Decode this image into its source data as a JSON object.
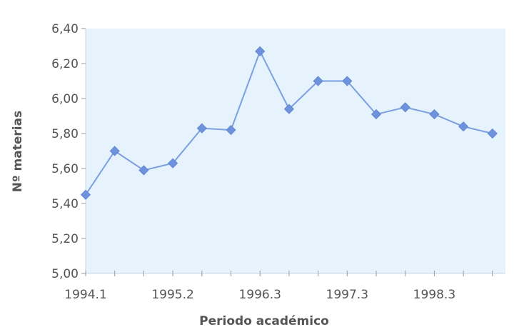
{
  "chart_data": {
    "type": "line",
    "title": "",
    "xlabel": "Periodo académico",
    "ylabel": "Nº materias",
    "ylim": [
      5.0,
      6.4
    ],
    "yticks": [
      "5,00",
      "5,20",
      "5,40",
      "5,60",
      "5,80",
      "6,00",
      "6,20",
      "6,40"
    ],
    "x_tick_labels": [
      "1994.1",
      "1995.2",
      "1996.3",
      "1997.3",
      "1998.3"
    ],
    "x_tick_label_positions": [
      0,
      3,
      6,
      9,
      12
    ],
    "categories": [
      "1994.1",
      "",
      "",
      "1995.2",
      "",
      "",
      "1996.3",
      "",
      "",
      "1997.3",
      "",
      "",
      "1998.3",
      "",
      ""
    ],
    "series": [
      {
        "values": [
          5.45,
          5.7,
          5.59,
          5.63,
          5.83,
          5.82,
          6.27,
          5.94,
          6.1,
          6.1,
          5.91,
          5.95,
          5.91,
          5.84,
          5.8
        ]
      }
    ],
    "grid": false,
    "colors": {
      "line": "#7b9fe0",
      "marker": "#6e93dc",
      "plot_bg": "#e6f2fc",
      "axis_text": "#555555"
    }
  }
}
